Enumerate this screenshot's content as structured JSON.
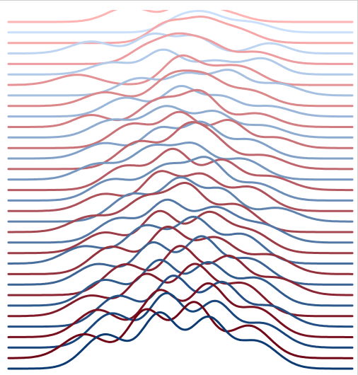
{
  "chart_data": {
    "type": "line",
    "title": "",
    "xlabel": "",
    "ylabel": "",
    "grid": false,
    "legend": "none",
    "style": "ridgeline",
    "x_range": [
      0,
      100
    ],
    "colors": {
      "red_ramp": [
        "#ffb3b3",
        "#6b0010"
      ],
      "blue_ramp": [
        "#cfe4ff",
        "#0c3b73"
      ]
    },
    "series": [
      {
        "color_family": "red",
        "peaks": [
          [
            35,
            0.45,
            6
          ],
          [
            52,
            0.55,
            5
          ],
          [
            62,
            0.3,
            6
          ]
        ]
      },
      {
        "color_family": "blue",
        "peaks": [
          [
            50,
            0.4,
            5
          ],
          [
            58,
            0.45,
            5
          ],
          [
            70,
            0.3,
            6
          ]
        ]
      },
      {
        "color_family": "red",
        "peaks": [
          [
            46,
            0.55,
            5
          ],
          [
            56,
            0.6,
            5
          ],
          [
            66,
            0.4,
            6
          ]
        ]
      },
      {
        "color_family": "blue",
        "peaks": [
          [
            24,
            0.35,
            6
          ],
          [
            42,
            0.55,
            5
          ],
          [
            54,
            0.5,
            5
          ],
          [
            76,
            0.3,
            5
          ]
        ]
      },
      {
        "color_family": "red",
        "peaks": [
          [
            40,
            0.45,
            5
          ],
          [
            49,
            0.7,
            5
          ],
          [
            58,
            0.55,
            5
          ],
          [
            72,
            0.35,
            6
          ]
        ]
      },
      {
        "color_family": "blue",
        "peaks": [
          [
            30,
            0.35,
            6
          ],
          [
            45,
            0.7,
            5
          ],
          [
            60,
            0.4,
            6
          ],
          [
            74,
            0.45,
            5
          ]
        ]
      },
      {
        "color_family": "red",
        "peaks": [
          [
            20,
            0.3,
            6
          ],
          [
            50,
            0.8,
            5
          ],
          [
            62,
            0.45,
            6
          ],
          [
            70,
            0.3,
            5
          ]
        ]
      },
      {
        "color_family": "blue",
        "peaks": [
          [
            38,
            0.5,
            6
          ],
          [
            52,
            0.6,
            5
          ],
          [
            64,
            0.7,
            5
          ],
          [
            78,
            0.35,
            6
          ]
        ]
      },
      {
        "color_family": "red",
        "peaks": [
          [
            28,
            0.4,
            6
          ],
          [
            48,
            0.9,
            6
          ],
          [
            58,
            0.65,
            5
          ],
          [
            70,
            0.45,
            6
          ]
        ]
      },
      {
        "color_family": "blue",
        "peaks": [
          [
            34,
            0.55,
            6
          ],
          [
            50,
            0.85,
            5
          ],
          [
            62,
            0.55,
            5
          ],
          [
            76,
            0.3,
            6
          ]
        ]
      },
      {
        "color_family": "red",
        "peaks": [
          [
            24,
            0.35,
            5
          ],
          [
            44,
            0.8,
            6
          ],
          [
            56,
            0.95,
            5
          ],
          [
            72,
            0.4,
            6
          ]
        ]
      },
      {
        "color_family": "blue",
        "peaks": [
          [
            30,
            0.5,
            6
          ],
          [
            46,
            0.9,
            6
          ],
          [
            60,
            0.7,
            5
          ],
          [
            74,
            0.35,
            6
          ]
        ]
      },
      {
        "color_family": "red",
        "peaks": [
          [
            36,
            0.7,
            6
          ],
          [
            50,
            1.0,
            5
          ],
          [
            64,
            0.8,
            5
          ],
          [
            78,
            0.3,
            5
          ]
        ]
      },
      {
        "color_family": "blue",
        "peaks": [
          [
            28,
            0.45,
            6
          ],
          [
            44,
            0.85,
            5
          ],
          [
            56,
            1.0,
            5
          ],
          [
            70,
            0.55,
            6
          ]
        ]
      },
      {
        "color_family": "red",
        "peaks": [
          [
            38,
            0.8,
            6
          ],
          [
            52,
            1.1,
            5
          ],
          [
            60,
            0.7,
            5
          ],
          [
            74,
            0.4,
            6
          ]
        ]
      },
      {
        "color_family": "blue",
        "peaks": [
          [
            26,
            0.45,
            6
          ],
          [
            42,
            0.95,
            6
          ],
          [
            54,
            0.9,
            5
          ],
          [
            68,
            0.6,
            6
          ]
        ]
      },
      {
        "color_family": "red",
        "peaks": [
          [
            34,
            0.7,
            6
          ],
          [
            48,
            1.15,
            5
          ],
          [
            62,
            0.85,
            5
          ],
          [
            76,
            0.4,
            6
          ]
        ]
      },
      {
        "color_family": "blue",
        "peaks": [
          [
            30,
            0.6,
            6
          ],
          [
            46,
            1.0,
            6
          ],
          [
            58,
            1.1,
            5
          ],
          [
            72,
            0.5,
            6
          ]
        ]
      },
      {
        "color_family": "red",
        "peaks": [
          [
            28,
            0.5,
            6
          ],
          [
            44,
            1.1,
            5
          ],
          [
            56,
            1.0,
            5
          ],
          [
            70,
            0.7,
            6
          ]
        ]
      },
      {
        "color_family": "blue",
        "peaks": [
          [
            36,
            0.8,
            6
          ],
          [
            50,
            1.2,
            5
          ],
          [
            62,
            0.9,
            5
          ],
          [
            78,
            0.4,
            6
          ]
        ]
      },
      {
        "color_family": "red",
        "peaks": [
          [
            24,
            0.45,
            6
          ],
          [
            40,
            1.0,
            6
          ],
          [
            52,
            1.25,
            5
          ],
          [
            66,
            0.8,
            6
          ]
        ]
      },
      {
        "color_family": "blue",
        "peaks": [
          [
            32,
            0.7,
            6
          ],
          [
            46,
            1.15,
            5
          ],
          [
            60,
            1.0,
            6
          ],
          [
            74,
            0.5,
            6
          ]
        ]
      },
      {
        "color_family": "red",
        "peaks": [
          [
            28,
            0.6,
            6
          ],
          [
            44,
            1.2,
            5
          ],
          [
            58,
            1.1,
            5
          ],
          [
            70,
            0.65,
            6
          ]
        ]
      },
      {
        "color_family": "blue",
        "peaks": [
          [
            22,
            0.5,
            6
          ],
          [
            40,
            1.1,
            6
          ],
          [
            54,
            1.25,
            5
          ],
          [
            68,
            0.85,
            6
          ]
        ]
      },
      {
        "color_family": "red",
        "peaks": [
          [
            30,
            0.8,
            6
          ],
          [
            46,
            1.3,
            5
          ],
          [
            60,
            1.05,
            6
          ],
          [
            76,
            0.55,
            6
          ]
        ]
      },
      {
        "color_family": "blue",
        "peaks": [
          [
            26,
            0.6,
            6
          ],
          [
            42,
            1.2,
            5
          ],
          [
            56,
            1.35,
            5
          ],
          [
            70,
            0.75,
            6
          ]
        ]
      },
      {
        "color_family": "red",
        "peaks": [
          [
            34,
            0.9,
            6
          ],
          [
            50,
            1.4,
            5
          ],
          [
            64,
            1.1,
            5
          ],
          [
            78,
            0.5,
            6
          ]
        ]
      },
      {
        "color_family": "blue",
        "peaks": [
          [
            28,
            0.75,
            6
          ],
          [
            44,
            1.3,
            5
          ],
          [
            58,
            1.2,
            5
          ],
          [
            72,
            0.8,
            6
          ]
        ]
      },
      {
        "color_family": "red",
        "peaks": [
          [
            24,
            0.6,
            6
          ],
          [
            40,
            1.2,
            5
          ],
          [
            54,
            1.45,
            5
          ],
          [
            68,
            0.95,
            6
          ]
        ]
      },
      {
        "color_family": "blue",
        "peaks": [
          [
            32,
            0.9,
            6
          ],
          [
            48,
            1.45,
            5
          ],
          [
            62,
            1.25,
            5
          ],
          [
            76,
            0.6,
            6
          ]
        ]
      },
      {
        "color_family": "red",
        "peaks": [
          [
            26,
            0.8,
            6
          ],
          [
            44,
            1.35,
            5
          ],
          [
            58,
            1.5,
            5
          ],
          [
            72,
            0.85,
            6
          ]
        ]
      },
      {
        "color_family": "blue",
        "peaks": [
          [
            30,
            1.0,
            6
          ],
          [
            46,
            1.55,
            5
          ],
          [
            60,
            1.3,
            5
          ],
          [
            74,
            0.7,
            6
          ]
        ]
      },
      {
        "color_family": "red",
        "peaks": [
          [
            22,
            0.7,
            6
          ],
          [
            40,
            1.4,
            5
          ],
          [
            54,
            1.6,
            5
          ],
          [
            70,
            0.95,
            6
          ]
        ]
      },
      {
        "color_family": "blue",
        "peaks": [
          [
            28,
            1.0,
            6
          ],
          [
            44,
            1.6,
            5
          ],
          [
            58,
            1.45,
            5
          ],
          [
            72,
            0.8,
            6
          ]
        ]
      }
    ]
  }
}
